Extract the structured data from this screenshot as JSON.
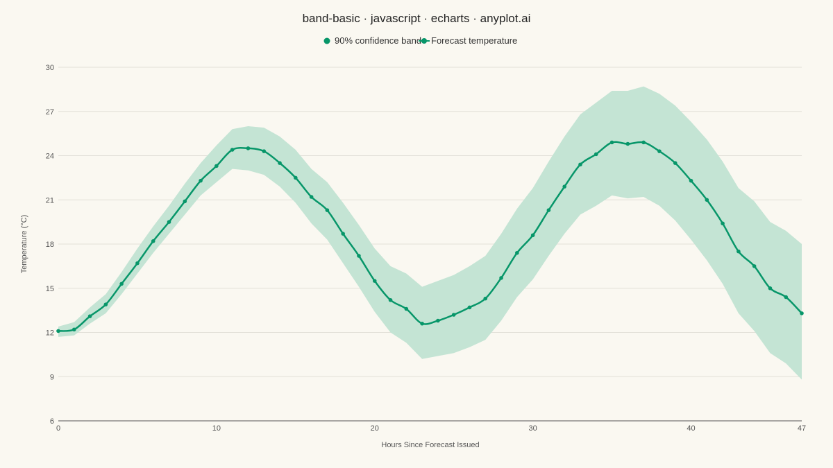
{
  "chart_data": {
    "type": "line",
    "title": "band-basic · javascript · echarts · anyplot.ai",
    "xlabel": "Hours Since Forecast Issued",
    "ylabel": "Temperature (°C)",
    "xlim": [
      0,
      47
    ],
    "ylim": [
      6,
      30
    ],
    "x_ticks": [
      0,
      10,
      20,
      30,
      40,
      47
    ],
    "y_ticks": [
      6,
      9,
      12,
      15,
      18,
      21,
      24,
      27,
      30
    ],
    "grid": true,
    "legend_position": "top-center",
    "colors": {
      "line": "#079669",
      "band": "#C4E4D4",
      "background": "#FAF8F1"
    },
    "x": [
      0,
      1,
      2,
      3,
      4,
      5,
      6,
      7,
      8,
      9,
      10,
      11,
      12,
      13,
      14,
      15,
      16,
      17,
      18,
      19,
      20,
      21,
      22,
      23,
      24,
      25,
      26,
      27,
      28,
      29,
      30,
      31,
      32,
      33,
      34,
      35,
      36,
      37,
      38,
      39,
      40,
      41,
      42,
      43,
      44,
      45,
      46,
      47
    ],
    "series": [
      {
        "name": "90% confidence band",
        "kind": "band",
        "lower": [
          11.7,
          11.8,
          12.6,
          13.3,
          14.6,
          16.0,
          17.4,
          18.7,
          20.0,
          21.3,
          22.2,
          23.1,
          23.0,
          22.7,
          21.9,
          20.8,
          19.4,
          18.3,
          16.7,
          15.1,
          13.4,
          12.0,
          11.3,
          10.2,
          10.4,
          10.6,
          11.0,
          11.5,
          12.8,
          14.4,
          15.6,
          17.2,
          18.7,
          20.0,
          20.6,
          21.3,
          21.1,
          21.2,
          20.6,
          19.6,
          18.3,
          16.9,
          15.3,
          13.3,
          12.1,
          10.6,
          9.9,
          8.8
        ],
        "upper": [
          12.4,
          12.7,
          13.7,
          14.6,
          16.1,
          17.7,
          19.2,
          20.6,
          22.1,
          23.5,
          24.7,
          25.8,
          26.0,
          25.9,
          25.3,
          24.4,
          23.1,
          22.2,
          20.8,
          19.3,
          17.7,
          16.5,
          16.0,
          15.1,
          15.5,
          15.9,
          16.5,
          17.2,
          18.7,
          20.4,
          21.8,
          23.6,
          25.3,
          26.8,
          27.6,
          28.4,
          28.4,
          28.7,
          28.2,
          27.4,
          26.3,
          25.1,
          23.6,
          21.8,
          20.9,
          19.5,
          18.9,
          18.0
        ]
      },
      {
        "name": "Forecast temperature",
        "kind": "line",
        "values": [
          12.1,
          12.2,
          13.1,
          13.9,
          15.3,
          16.7,
          18.2,
          19.5,
          20.9,
          22.3,
          23.3,
          24.4,
          24.5,
          24.3,
          23.5,
          22.5,
          21.2,
          20.3,
          18.7,
          17.2,
          15.5,
          14.2,
          13.6,
          12.6,
          12.8,
          13.2,
          13.7,
          14.3,
          15.7,
          17.4,
          18.6,
          20.3,
          21.9,
          23.4,
          24.1,
          24.9,
          24.8,
          24.9,
          24.3,
          23.5,
          22.3,
          21.0,
          19.4,
          17.5,
          16.5,
          15.0,
          14.4,
          13.3
        ]
      }
    ]
  }
}
